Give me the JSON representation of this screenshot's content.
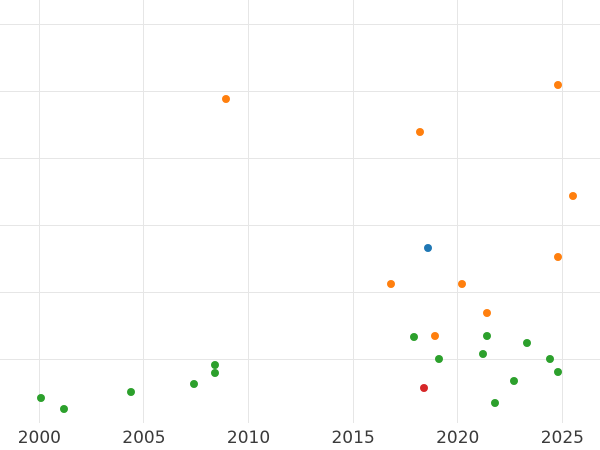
{
  "figure": {
    "background_color": "#ffffff",
    "gridline_color": "#e6e6e6",
    "tick_label_color": "#3b3b3b"
  },
  "chart_data": {
    "type": "scatter",
    "title": "",
    "xlabel": "",
    "ylabel": "",
    "grid": true,
    "legend": "none",
    "xticks": [
      2000,
      2005,
      2010,
      2015,
      2020,
      2025
    ],
    "xtick_labels": [
      "2000",
      "2005",
      "2010",
      "2015",
      "2020",
      "2025"
    ],
    "xlim": [
      1998.12,
      2026.8
    ],
    "yticks_units": [
      1,
      2,
      3,
      4,
      5,
      6
    ],
    "ylim_units": [
      0.06,
      6.37
    ],
    "y_axis_note": "y-axis tick labels are not visible in the screenshot; y values are given in gridline units (one horizontal gridline = 1 unit)",
    "series": [
      {
        "name": "green",
        "color": "#2ca02c",
        "points": [
          [
            2000.1,
            0.43
          ],
          [
            2001.2,
            0.27
          ],
          [
            2004.4,
            0.52
          ],
          [
            2007.4,
            0.64
          ],
          [
            2008.4,
            0.92
          ],
          [
            2008.4,
            0.81
          ],
          [
            2017.9,
            1.35
          ],
          [
            2019.1,
            1.02
          ],
          [
            2021.2,
            1.09
          ],
          [
            2021.4,
            1.36
          ],
          [
            2021.8,
            0.36
          ],
          [
            2022.7,
            0.69
          ],
          [
            2023.3,
            1.26
          ],
          [
            2024.4,
            1.01
          ],
          [
            2024.8,
            0.82
          ]
        ]
      },
      {
        "name": "orange",
        "color": "#ff7f0e",
        "points": [
          [
            2008.9,
            4.9
          ],
          [
            2016.8,
            2.13
          ],
          [
            2018.2,
            4.4
          ],
          [
            2018.9,
            1.36
          ],
          [
            2020.2,
            2.14
          ],
          [
            2021.4,
            1.7
          ],
          [
            2024.8,
            5.1
          ],
          [
            2024.8,
            2.54
          ],
          [
            2025.5,
            3.45
          ]
        ]
      },
      {
        "name": "blue",
        "color": "#1f77b4",
        "points": [
          [
            2018.6,
            2.67
          ]
        ]
      },
      {
        "name": "red",
        "color": "#d62728",
        "points": [
          [
            2018.4,
            0.58
          ]
        ]
      }
    ]
  }
}
